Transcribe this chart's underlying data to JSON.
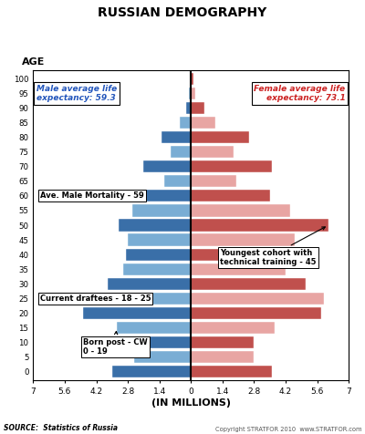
{
  "title": "RUSSIAN DEMOGRAPHY",
  "ages": [
    0,
    5,
    10,
    15,
    20,
    25,
    30,
    35,
    40,
    45,
    50,
    55,
    60,
    65,
    70,
    75,
    80,
    85,
    90,
    95,
    100
  ],
  "age_labels": [
    "0",
    "5",
    "10",
    "15",
    "20",
    "25",
    "30",
    "35",
    "40",
    "45",
    "50",
    "55",
    "60",
    "65",
    "70",
    "75",
    "80",
    "85",
    "90",
    "95",
    "100"
  ],
  "male": [
    3.5,
    2.5,
    2.8,
    3.3,
    4.8,
    4.2,
    3.7,
    3.0,
    2.9,
    2.8,
    3.2,
    2.6,
    2.7,
    1.2,
    2.1,
    0.9,
    1.3,
    0.5,
    0.2,
    0.1,
    0.05
  ],
  "female": [
    3.6,
    2.8,
    2.8,
    3.7,
    5.8,
    5.9,
    5.1,
    4.2,
    3.8,
    4.6,
    6.1,
    4.4,
    3.5,
    2.0,
    3.6,
    1.9,
    2.6,
    1.1,
    0.6,
    0.2,
    0.1
  ],
  "male_color_dark": "#3a6fa8",
  "male_color_light": "#7aadd4",
  "female_color_dark": "#c0504d",
  "female_color_light": "#e8a5a3",
  "xlabel": "(IN MILLIONS)",
  "xlim": 7.0,
  "source": "SOURCE:  Statistics of Russia",
  "copyright": "Copyright STRATFOR 2010  www.STRATFOR.com",
  "male_life_text": "Male average life\nexpectancy: 59.3",
  "female_life_text": "Female average life\nexpectancy: 73.1",
  "ann1_text": "Ave. Male Mortality - 59",
  "ann2_text": "Youngest cohort with\ntechnical training - 45",
  "ann3_text": "Current draftees - 18 - 25",
  "ann4_text": "Born post - CW\n0 - 19"
}
